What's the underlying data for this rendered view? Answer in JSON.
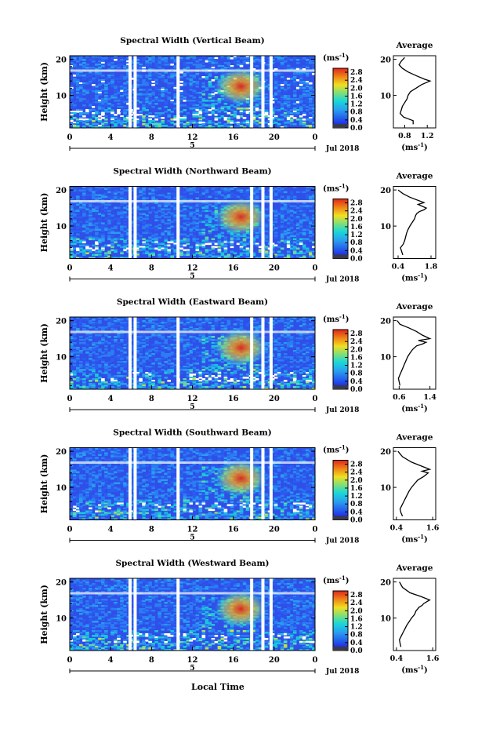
{
  "figure": {
    "date_label": "Jul 2018",
    "day_label": "5",
    "xlabel_bottom": "Local Time",
    "units_label": "(ms",
    "units_sup": "-1",
    "units_close": ")"
  },
  "colorbar": {
    "ticks": [
      "2.8",
      "2.4",
      "2.0",
      "1.6",
      "1.2",
      "0.8",
      "0.4",
      "0.0"
    ]
  },
  "colors": {
    "background_low": "#2b3fe0",
    "highlight": "#e0261a",
    "mid": "#18c8d8",
    "gap": "#ffffff"
  },
  "chart_data": [
    {
      "type": "heatmap",
      "title": "Spectral Width (Vertical Beam)",
      "xlabel": "",
      "ylabel": "Height (km)",
      "xticks": [
        "0",
        "4",
        "8",
        "12",
        "16",
        "20",
        "0"
      ],
      "xlim": [
        0,
        24
      ],
      "yticks": [
        "20",
        "10"
      ],
      "ylim": [
        1,
        21
      ],
      "colorbar_range": [
        0.0,
        3.0
      ],
      "data_gaps_hours": [
        5.9,
        6.4,
        10.6,
        17.8,
        18.9,
        19.7
      ],
      "high_value_region": {
        "hours": [
          15,
          18.5
        ],
        "heights_km": [
          9,
          16
        ]
      }
    },
    {
      "type": "heatmap",
      "title": "Spectral Width (Northward Beam)",
      "xlabel": "",
      "ylabel": "Height (km)",
      "xticks": [
        "0",
        "4",
        "8",
        "12",
        "16",
        "20",
        "0"
      ],
      "xlim": [
        0,
        24
      ],
      "yticks": [
        "20",
        "10"
      ],
      "ylim": [
        1,
        21
      ],
      "colorbar_range": [
        0.0,
        3.0
      ],
      "data_gaps_hours": [
        5.9,
        6.4,
        10.6,
        17.8,
        18.9,
        19.7
      ],
      "high_value_region": {
        "hours": [
          15,
          18.5
        ],
        "heights_km": [
          9,
          16
        ]
      }
    },
    {
      "type": "heatmap",
      "title": "Spectral Width (Eastward Beam)",
      "xlabel": "",
      "ylabel": "Height (km)",
      "xticks": [
        "0",
        "4",
        "8",
        "12",
        "16",
        "20",
        "0"
      ],
      "xlim": [
        0,
        24
      ],
      "yticks": [
        "20",
        "10"
      ],
      "ylim": [
        1,
        21
      ],
      "colorbar_range": [
        0.0,
        3.0
      ],
      "data_gaps_hours": [
        5.9,
        6.4,
        10.6,
        17.8,
        18.9,
        19.7
      ],
      "high_value_region": {
        "hours": [
          15,
          18.5
        ],
        "heights_km": [
          9,
          16
        ]
      }
    },
    {
      "type": "heatmap",
      "title": "Spectral Width (Southward Beam)",
      "xlabel": "",
      "ylabel": "Height (km)",
      "xticks": [
        "0",
        "4",
        "8",
        "12",
        "16",
        "20",
        "0"
      ],
      "xlim": [
        0,
        24
      ],
      "yticks": [
        "20",
        "10"
      ],
      "ylim": [
        1,
        21
      ],
      "colorbar_range": [
        0.0,
        3.0
      ],
      "data_gaps_hours": [
        5.9,
        6.4,
        10.6,
        17.8,
        18.9,
        19.7
      ],
      "high_value_region": {
        "hours": [
          15,
          18.5
        ],
        "heights_km": [
          9,
          16
        ]
      }
    },
    {
      "type": "heatmap",
      "title": "Spectral Width (Westward Beam)",
      "xlabel": "",
      "ylabel": "Height (km)",
      "xticks": [
        "0",
        "4",
        "8",
        "12",
        "16",
        "20",
        "0"
      ],
      "xlim": [
        0,
        24
      ],
      "yticks": [
        "20",
        "10"
      ],
      "ylim": [
        1,
        21
      ],
      "colorbar_range": [
        0.0,
        3.0
      ],
      "data_gaps_hours": [
        5.9,
        6.4,
        10.6,
        17.8,
        18.9,
        19.7
      ],
      "high_value_region": {
        "hours": [
          15,
          18.5
        ],
        "heights_km": [
          9,
          16
        ]
      }
    },
    {
      "type": "line",
      "title": "Average",
      "xlabel": "(ms-1)",
      "ylabel": "",
      "xticks": [
        "0.8",
        "1.2"
      ],
      "xlim": [
        0.6,
        1.35
      ],
      "yticks": [
        "20",
        "10"
      ],
      "ylim": [
        1,
        21
      ],
      "series": [
        {
          "x": [
            0.95,
            0.95,
            0.78,
            0.72,
            0.74,
            0.76,
            0.8,
            0.84,
            0.86,
            0.9,
            1.0,
            1.1,
            1.25,
            1.15,
            1.0,
            0.86,
            0.76,
            0.7,
            0.74,
            0.8
          ],
          "y": [
            2,
            3,
            4,
            5,
            6,
            7,
            8,
            9,
            10,
            11,
            12,
            13,
            14,
            14.5,
            15.5,
            16.5,
            17.5,
            18.5,
            19.5,
            20.5
          ]
        }
      ]
    },
    {
      "type": "line",
      "title": "Average",
      "xlabel": "(ms-1)",
      "ylabel": "",
      "xticks": [
        "0.4",
        "1.8"
      ],
      "xlim": [
        0.2,
        2.0
      ],
      "yticks": [
        "20",
        "10"
      ],
      "ylim": [
        1,
        21
      ],
      "series": [
        {
          "x": [
            0.6,
            0.55,
            0.5,
            0.62,
            0.68,
            0.72,
            0.76,
            0.82,
            0.9,
            1.0,
            1.1,
            1.15,
            1.2,
            1.3,
            1.5,
            1.6,
            1.25,
            1.5,
            0.9,
            0.6,
            0.4
          ],
          "y": [
            2,
            3,
            4,
            5,
            6,
            7,
            8,
            9,
            10,
            11,
            12,
            13,
            13.5,
            14,
            14.5,
            15,
            16,
            16.5,
            18,
            19,
            20
          ]
        }
      ]
    },
    {
      "type": "line",
      "title": "Average",
      "xlabel": "(ms-1)",
      "ylabel": "",
      "xticks": [
        "0.6",
        "1.4"
      ],
      "xlim": [
        0.45,
        1.55
      ],
      "yticks": [
        "20",
        "10"
      ],
      "ylim": [
        1,
        21
      ],
      "series": [
        {
          "x": [
            0.62,
            0.6,
            0.58,
            0.62,
            0.66,
            0.7,
            0.74,
            0.78,
            0.82,
            0.88,
            0.95,
            1.05,
            1.2,
            1.3,
            1.1,
            1.4,
            1.2,
            1.05,
            0.85,
            0.62,
            0.55
          ],
          "y": [
            2,
            3,
            4,
            5,
            6,
            7,
            8,
            9,
            10,
            11,
            12,
            13,
            13.5,
            14,
            14.5,
            15,
            16,
            17,
            18,
            19,
            20
          ]
        }
      ]
    },
    {
      "type": "line",
      "title": "Average",
      "xlabel": "(ms-1)",
      "ylabel": "",
      "xticks": [
        "0.4",
        "1.6"
      ],
      "xlim": [
        0.3,
        1.7
      ],
      "yticks": [
        "20",
        "10"
      ],
      "ylim": [
        1,
        21
      ],
      "series": [
        {
          "x": [
            0.6,
            0.55,
            0.52,
            0.58,
            0.64,
            0.7,
            0.76,
            0.82,
            0.9,
            1.0,
            1.1,
            1.2,
            1.3,
            1.45,
            1.25,
            1.5,
            1.2,
            0.9,
            0.6,
            0.45
          ],
          "y": [
            2,
            3,
            4,
            5,
            6,
            7,
            8,
            9,
            10,
            11,
            12,
            12.5,
            13,
            14,
            14.5,
            15,
            16,
            17,
            18.5,
            20
          ]
        }
      ]
    },
    {
      "type": "line",
      "title": "Average",
      "xlabel": "(ms-1)",
      "ylabel": "",
      "xticks": [
        "0.4",
        "1.6"
      ],
      "xlim": [
        0.3,
        1.7
      ],
      "yticks": [
        "20",
        "10"
      ],
      "ylim": [
        1,
        21
      ],
      "series": [
        {
          "x": [
            0.55,
            0.52,
            0.5,
            0.56,
            0.62,
            0.68,
            0.74,
            0.82,
            0.9,
            1.0,
            1.05,
            1.1,
            1.15,
            1.25,
            1.3,
            1.5,
            1.2,
            0.85,
            0.6,
            0.5
          ],
          "y": [
            2,
            3,
            4,
            5,
            6,
            7,
            8,
            9,
            10,
            11,
            12,
            12.5,
            13,
            13.5,
            14,
            15,
            16,
            17,
            18.5,
            20
          ]
        }
      ]
    }
  ]
}
